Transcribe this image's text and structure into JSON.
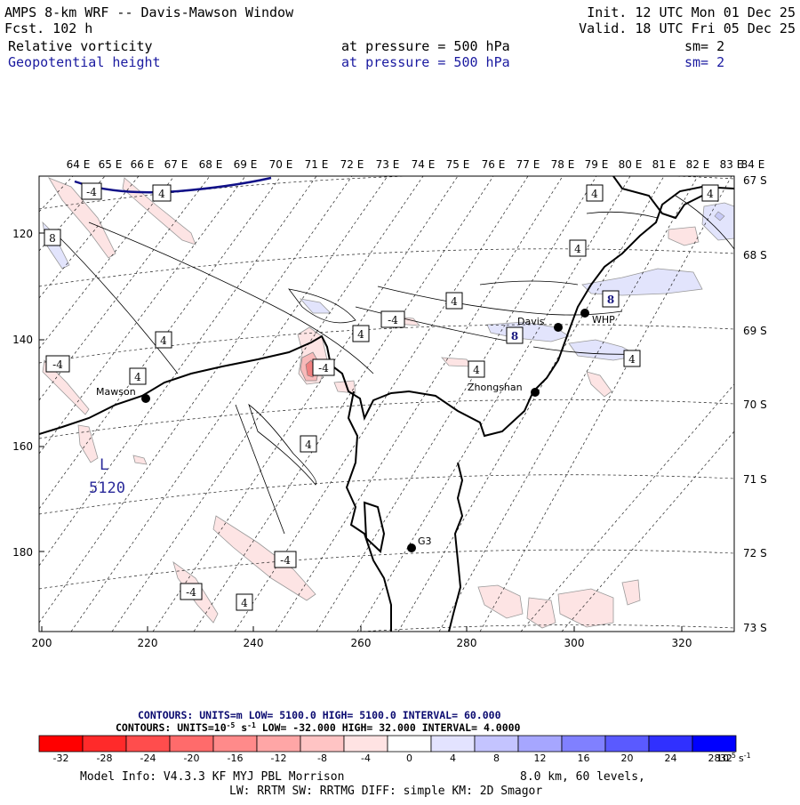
{
  "header": {
    "title": "AMPS 8-km WRF -- Davis-Mawson Window",
    "forecast": "Fcst.  102 h",
    "init": "Init. 12 UTC Mon 01 Dec 25",
    "valid": "Valid. 18 UTC Fri 05 Dec 25",
    "field1": {
      "name": "Relative vorticity",
      "level": "at pressure =  500 hPa",
      "smooth": "sm= 2"
    },
    "field2": {
      "name": "Geopotential height",
      "level": "at pressure =  500 hPa",
      "smooth": "sm= 2"
    }
  },
  "map": {
    "top_lon_labels": [
      "64 E",
      "65 E",
      "66 E",
      "67 E",
      "68 E",
      "69 E",
      "70 E",
      "71 E",
      "72 E",
      "73 E",
      "74 E",
      "75 E",
      "76 E",
      "77 E",
      "78 E",
      "79 E",
      "80 E",
      "81 E",
      "82 E",
      "83 E",
      "84 E"
    ],
    "right_lat_labels": [
      "67 S",
      "68 S",
      "69 S",
      "70 S",
      "71 S",
      "72 S",
      "73 S"
    ],
    "left_grid_labels": [
      "120",
      "140",
      "160",
      "180"
    ],
    "bottom_grid_labels": [
      "200",
      "220",
      "240",
      "260",
      "280",
      "300",
      "320"
    ],
    "stations": [
      "Mawson",
      "Davis",
      "WHP",
      "Zhongshan",
      "G3"
    ],
    "low_center": {
      "letter": "L",
      "value": "5120"
    },
    "contour_labels": [
      "-4",
      "4",
      "8"
    ]
  },
  "legend": {
    "geo_contours": "CONTOURS:  UNITS=m  LOW=  5100.0      HIGH=  5100.0      INTERVAL=   60.000",
    "vort_contours": "CONTOURS:  UNITS=10",
    "vort_contours_exp": "-5",
    "vort_contours_rest": " s",
    "vort_contours_rest_exp": "-1",
    "vort_contours_tail": "  LOW=  -32.000       HIGH=  32.000      INTERVAL=   4.0000",
    "colorbar_ticks": [
      "-32",
      "-28",
      "-24",
      "-20",
      "-16",
      "-12",
      "-8",
      "-4",
      "0",
      "4",
      "8",
      "12",
      "16",
      "20",
      "24",
      "28",
      "32"
    ],
    "colorbar_colors": [
      "#ff0000",
      "#ff2a2a",
      "#ff4d4d",
      "#ff6b6b",
      "#ff8a8a",
      "#ffa6a6",
      "#ffc4c4",
      "#ffe3e3",
      "#ffffff",
      "#ffffff",
      "#e3e3ff",
      "#c4c4ff",
      "#a6a6ff",
      "#8080ff",
      "#5a5aff",
      "#3030ff",
      "#0000ff"
    ],
    "colorbar_units": "10",
    "colorbar_units_exp": "-5",
    "colorbar_units_s": "s",
    "colorbar_units_s_exp": "-1"
  },
  "model_info": {
    "line1_a": "Model Info: V4.3.3   KF      MYJ PBL  Morrison",
    "line1_b": "8.0 km,  60 levels,",
    "line2": "LW: RRTM SW: RRTMG   DIFF: simple KM: 2D Smagor"
  }
}
